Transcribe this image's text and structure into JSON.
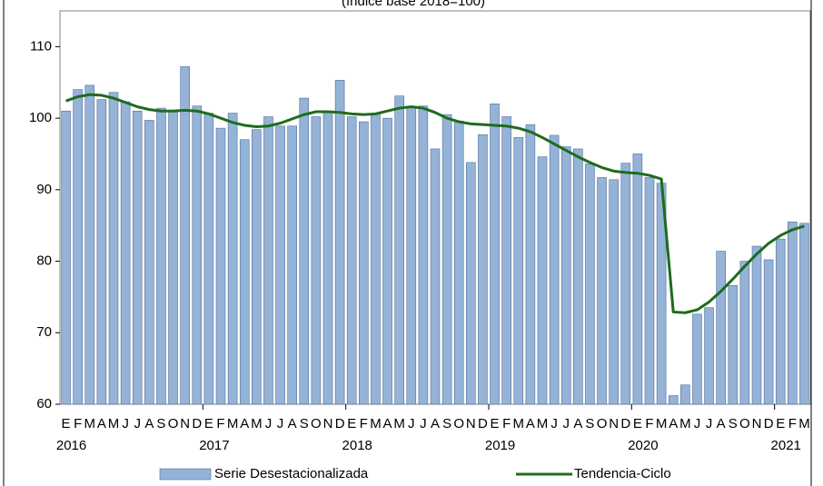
{
  "chart_data": {
    "type": "bar",
    "subtitle": "(índice base 2018=100)",
    "categories": [
      "E",
      "F",
      "M",
      "A",
      "M",
      "J",
      "J",
      "A",
      "S",
      "O",
      "N",
      "D",
      "E",
      "F",
      "M",
      "A",
      "M",
      "J",
      "J",
      "A",
      "S",
      "O",
      "N",
      "D",
      "E",
      "F",
      "M",
      "A",
      "M",
      "J",
      "J",
      "A",
      "S",
      "O",
      "N",
      "D",
      "E",
      "F",
      "M",
      "A",
      "M",
      "J",
      "J",
      "A",
      "S",
      "O",
      "N",
      "D",
      "E",
      "F",
      "M",
      "A",
      "M",
      "J",
      "J",
      "A",
      "S",
      "O",
      "N",
      "D",
      "E",
      "F",
      "M"
    ],
    "year_labels": [
      "2016",
      "2017",
      "2018",
      "2019",
      "2020",
      "2021"
    ],
    "series": [
      {
        "name": "Serie Desestacionalizada",
        "type": "bar",
        "color": "#95b3d7",
        "values": [
          101,
          104,
          104.6,
          102.6,
          103.6,
          102.3,
          101,
          99.7,
          101.4,
          101,
          107.2,
          101.7,
          100.7,
          98.6,
          100.7,
          97,
          98.4,
          100.2,
          98.9,
          98.9,
          102.8,
          100.2,
          100.8,
          105.3,
          100.2,
          99.5,
          100.7,
          100,
          103.1,
          101.5,
          101.7,
          95.7,
          100.5,
          99.6,
          93.8,
          97.7,
          102,
          100.2,
          97.3,
          99.1,
          94.6,
          97.6,
          96,
          95.7,
          93.6,
          91.7,
          91.4,
          93.7,
          95,
          91.7,
          90.9,
          61.2,
          62.7,
          72.6,
          73.5,
          81.4,
          76.6,
          80,
          82.1,
          80.2,
          83.1,
          85.5,
          85.3
        ]
      },
      {
        "name": "Tendencia-Ciclo",
        "type": "line",
        "color": "#1e6b1e",
        "values": [
          102.4,
          103,
          103.3,
          103.2,
          102.8,
          102.2,
          101.6,
          101.2,
          101,
          101,
          101.1,
          101,
          100.6,
          100,
          99.4,
          99,
          98.8,
          98.9,
          99.3,
          99.9,
          100.5,
          100.9,
          100.9,
          100.8,
          100.6,
          100.5,
          100.6,
          101,
          101.4,
          101.6,
          101.4,
          100.8,
          100,
          99.5,
          99.2,
          99.1,
          99,
          98.9,
          98.6,
          98.1,
          97.3,
          96.4,
          95.5,
          94.6,
          93.8,
          93.1,
          92.6,
          92.4,
          92.3,
          92,
          91.5,
          72.9,
          72.8,
          73.2,
          74.3,
          75.8,
          77.5,
          79.3,
          81,
          82.5,
          83.6,
          84.4,
          84.9
        ]
      }
    ],
    "ylim": [
      60,
      115
    ],
    "yticks": [
      60,
      70,
      80,
      90,
      100,
      110
    ],
    "grid": false,
    "legend": "bottom"
  }
}
